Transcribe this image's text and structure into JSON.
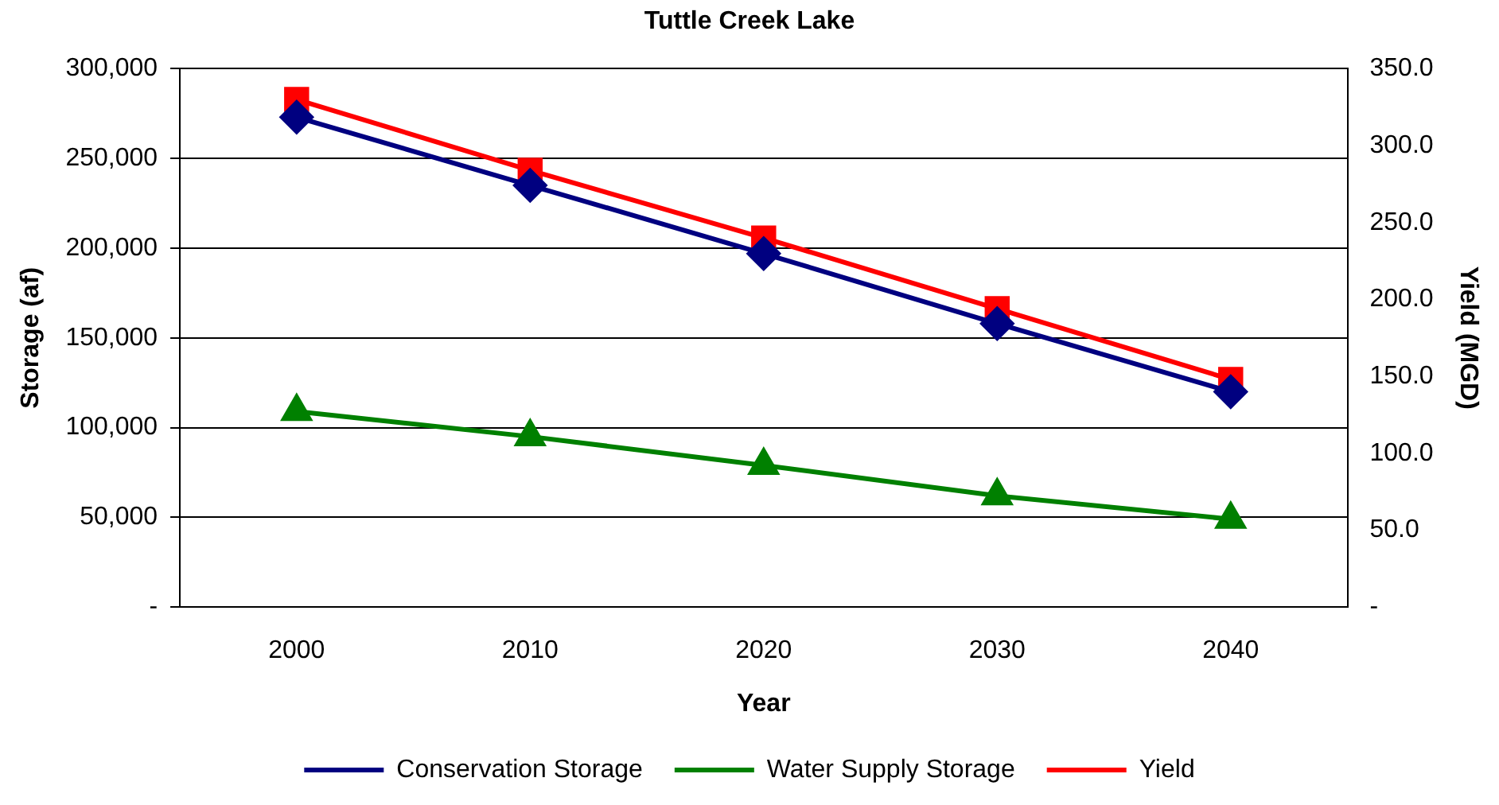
{
  "chart_data": {
    "type": "line",
    "title": "Tuttle Creek Lake",
    "xlabel": "Year",
    "ylabel": "Storage (af)",
    "y2label": "Yield (MGD)",
    "categories": [
      "2000",
      "2010",
      "2020",
      "2030",
      "2040"
    ],
    "series": [
      {
        "name": "Conservation Storage",
        "color": "#000080",
        "marker": "diamond",
        "values": [
          273000,
          235000,
          197000,
          158000,
          120000
        ]
      },
      {
        "name": "Water Supply Storage",
        "color": "#008000",
        "marker": "triangle",
        "values": [
          109000,
          95000,
          79000,
          62000,
          49000
        ]
      },
      {
        "name": "Yield",
        "color": "#ff0000",
        "marker": "square",
        "axis": "y2",
        "values": [
          330,
          284,
          240,
          194,
          148
        ]
      }
    ],
    "ylim": [
      0,
      300000
    ],
    "yticks": [
      {
        "value": 0,
        "label": "-"
      },
      {
        "value": 50000,
        "label": "50,000"
      },
      {
        "value": 100000,
        "label": "100,000"
      },
      {
        "value": 150000,
        "label": "150,000"
      },
      {
        "value": 200000,
        "label": "200,000"
      },
      {
        "value": 250000,
        "label": "250,000"
      },
      {
        "value": 300000,
        "label": "300,000"
      }
    ],
    "y2lim": [
      0,
      350
    ],
    "y2ticks": [
      {
        "value": 0,
        "label": "-"
      },
      {
        "value": 50,
        "label": "50.0"
      },
      {
        "value": 100,
        "label": "100.0"
      },
      {
        "value": 150,
        "label": "150.0"
      },
      {
        "value": 200,
        "label": "200.0"
      },
      {
        "value": 250,
        "label": "250.0"
      },
      {
        "value": 300,
        "label": "300.0"
      },
      {
        "value": 350,
        "label": "350.0"
      }
    ],
    "grid": "y",
    "legend": "bottom"
  }
}
